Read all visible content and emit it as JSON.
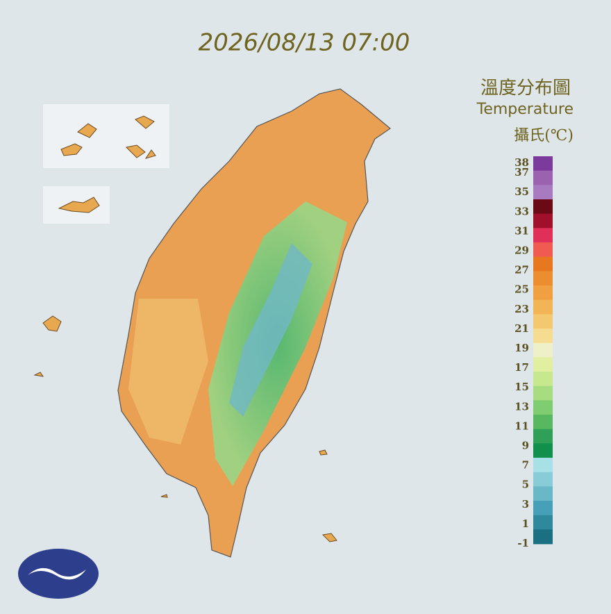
{
  "title": "2026/08/13 07:00",
  "legend": {
    "title": "溫度分布圖",
    "subtitle": "Temperature",
    "unit": "攝氏(℃)",
    "ticks": [
      38,
      37,
      35,
      33,
      31,
      29,
      27,
      25,
      23,
      21,
      19,
      17,
      15,
      13,
      11,
      9,
      7,
      5,
      3,
      1,
      -1
    ],
    "colors": [
      "#7b3a9c",
      "#9b62b0",
      "#a87bc0",
      "#6b0a14",
      "#a0102a",
      "#e0305a",
      "#f05a50",
      "#e87820",
      "#ec8e30",
      "#f0a040",
      "#f2b454",
      "#f4c870",
      "#f6dc90",
      "#f0f0c8",
      "#e0f0a0",
      "#c8e890",
      "#a8dc80",
      "#80cc70",
      "#58b860",
      "#30a058",
      "#10904a",
      "#a8e0e8",
      "#88ccd8",
      "#68b8c8",
      "#48a0b8",
      "#30889c",
      "#1a7080"
    ]
  }
}
